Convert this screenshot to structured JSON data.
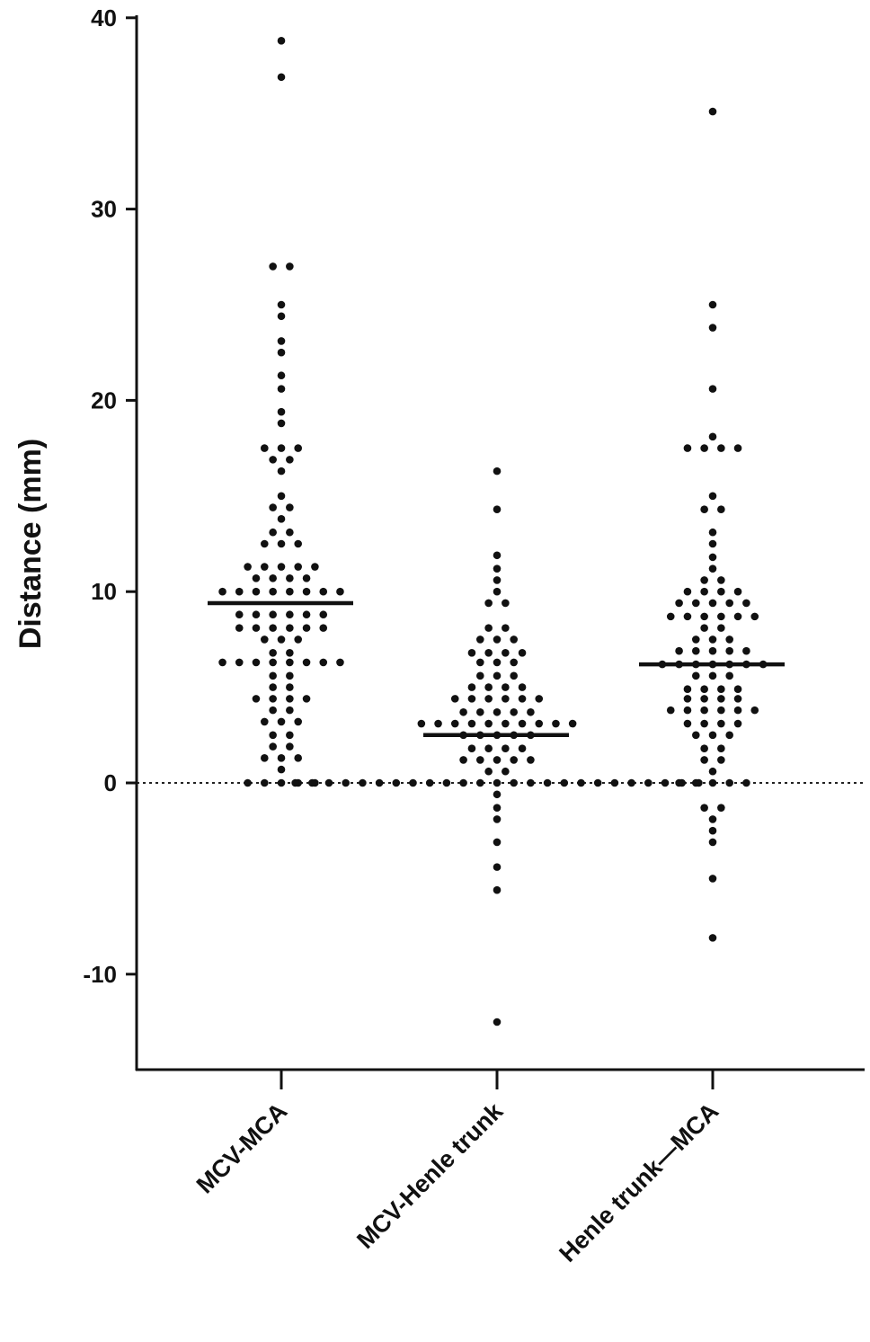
{
  "chart_data": {
    "type": "scatter",
    "subtype": "dot-plot with mean line",
    "title": "",
    "xlabel": "",
    "ylabel": "Distance (mm)",
    "ylim": [
      -15,
      40
    ],
    "yticks": [
      40,
      30,
      20,
      10,
      0,
      -10
    ],
    "reference_line": {
      "y": 0,
      "style": "dotted"
    },
    "grid": false,
    "marker_color": "#111111",
    "categories": [
      "MCV-MCA",
      "MCV-Henle trunk",
      "Henle trunk—MCA"
    ],
    "series": [
      {
        "category": "MCV-MCA",
        "mean": 9.4,
        "points_value_count": [
          [
            38.8,
            1
          ],
          [
            36.9,
            1
          ],
          [
            27.0,
            2
          ],
          [
            25.0,
            1
          ],
          [
            24.4,
            1
          ],
          [
            23.1,
            1
          ],
          [
            22.5,
            1
          ],
          [
            21.3,
            1
          ],
          [
            20.6,
            1
          ],
          [
            19.4,
            1
          ],
          [
            18.8,
            1
          ],
          [
            17.5,
            3
          ],
          [
            16.9,
            2
          ],
          [
            16.3,
            1
          ],
          [
            15.0,
            1
          ],
          [
            14.4,
            2
          ],
          [
            13.8,
            1
          ],
          [
            13.1,
            2
          ],
          [
            12.5,
            3
          ],
          [
            11.3,
            5
          ],
          [
            10.7,
            4
          ],
          [
            10.0,
            8
          ],
          [
            8.8,
            6
          ],
          [
            8.1,
            6
          ],
          [
            7.5,
            3
          ],
          [
            6.8,
            2
          ],
          [
            6.3,
            8
          ],
          [
            5.6,
            2
          ],
          [
            5.0,
            2
          ],
          [
            4.4,
            4
          ],
          [
            3.8,
            2
          ],
          [
            3.2,
            3
          ],
          [
            2.5,
            2
          ],
          [
            1.9,
            2
          ],
          [
            1.3,
            3
          ],
          [
            0.7,
            1
          ],
          [
            0,
            5
          ]
        ]
      },
      {
        "category": "MCV-Henle trunk",
        "mean": 2.5,
        "points_value_count": [
          [
            16.3,
            1
          ],
          [
            14.3,
            1
          ],
          [
            11.9,
            1
          ],
          [
            11.2,
            1
          ],
          [
            10.6,
            1
          ],
          [
            10.0,
            1
          ],
          [
            9.4,
            2
          ],
          [
            8.1,
            2
          ],
          [
            7.5,
            3
          ],
          [
            6.8,
            4
          ],
          [
            6.3,
            3
          ],
          [
            5.6,
            3
          ],
          [
            5.0,
            4
          ],
          [
            4.4,
            6
          ],
          [
            3.7,
            5
          ],
          [
            3.1,
            10
          ],
          [
            2.5,
            5
          ],
          [
            1.8,
            4
          ],
          [
            1.2,
            5
          ],
          [
            0.6,
            2
          ],
          [
            0,
            25
          ],
          [
            -0.6,
            1
          ],
          [
            -1.3,
            1
          ],
          [
            -1.9,
            1
          ],
          [
            -3.1,
            1
          ],
          [
            -4.4,
            1
          ],
          [
            -5.6,
            1
          ],
          [
            -12.5,
            1
          ]
        ]
      },
      {
        "category": "Henle trunk—MCA",
        "mean": 6.2,
        "points_value_count": [
          [
            35.1,
            1
          ],
          [
            25.0,
            1
          ],
          [
            23.8,
            1
          ],
          [
            20.6,
            1
          ],
          [
            18.1,
            1
          ],
          [
            17.5,
            4
          ],
          [
            15.0,
            1
          ],
          [
            14.3,
            2
          ],
          [
            13.1,
            1
          ],
          [
            12.5,
            1
          ],
          [
            11.8,
            1
          ],
          [
            11.2,
            1
          ],
          [
            10.6,
            2
          ],
          [
            10.0,
            4
          ],
          [
            9.4,
            5
          ],
          [
            8.7,
            6
          ],
          [
            8.1,
            2
          ],
          [
            7.5,
            3
          ],
          [
            6.9,
            5
          ],
          [
            6.2,
            7
          ],
          [
            5.6,
            3
          ],
          [
            4.9,
            4
          ],
          [
            4.4,
            4
          ],
          [
            3.8,
            6
          ],
          [
            3.1,
            4
          ],
          [
            2.5,
            3
          ],
          [
            1.8,
            2
          ],
          [
            1.2,
            2
          ],
          [
            0.6,
            1
          ],
          [
            0,
            5
          ],
          [
            -1.3,
            2
          ],
          [
            -1.9,
            1
          ],
          [
            -2.5,
            1
          ],
          [
            -3.1,
            1
          ],
          [
            -5.0,
            1
          ],
          [
            -8.1,
            1
          ]
        ]
      }
    ]
  }
}
